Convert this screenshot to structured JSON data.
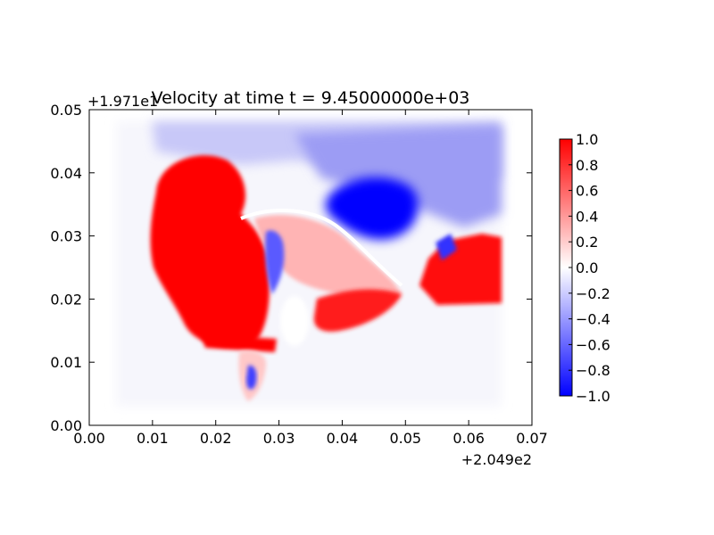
{
  "chart_data": {
    "type": "heatmap",
    "title": "Velocity at time t = 9.45000000e+03",
    "xlabel": "",
    "ylabel": "",
    "x_offset_label": "+2.049e2",
    "y_offset_label": "+1.971e1",
    "xlim": [
      0.0,
      0.07
    ],
    "ylim": [
      0.0,
      0.05
    ],
    "x_ticks": [
      "0.00",
      "0.01",
      "0.02",
      "0.03",
      "0.04",
      "0.05",
      "0.06",
      "0.07"
    ],
    "y_ticks": [
      "0.00",
      "0.01",
      "0.02",
      "0.03",
      "0.04",
      "0.05"
    ],
    "colorbar": {
      "min": -1.0,
      "max": 1.0,
      "colormap": "bwr",
      "ticks": [
        "1.0",
        "0.8",
        "0.6",
        "0.4",
        "0.2",
        "0.0",
        "−0.2",
        "−0.4",
        "−0.6",
        "−0.8",
        "−1.0"
      ]
    },
    "grid": false,
    "regions": [
      {
        "x": [
          0.009,
          0.065
        ],
        "y": [
          0.043,
          0.048
        ],
        "value": -0.3
      },
      {
        "x": [
          0.035,
          0.048
        ],
        "y": [
          0.03,
          0.038
        ],
        "value": -1.0
      },
      {
        "x": [
          0.012,
          0.027
        ],
        "y": [
          0.018,
          0.04
        ],
        "value": 1.0
      },
      {
        "x": [
          0.055,
          0.065
        ],
        "y": [
          0.02,
          0.029
        ],
        "value": 1.0
      },
      {
        "x": [
          0.029,
          0.04
        ],
        "y": [
          0.019,
          0.03
        ],
        "value": 0.3
      },
      {
        "x": [
          0.037,
          0.046
        ],
        "y": [
          0.016,
          0.022
        ],
        "value": 1.0
      },
      {
        "x": [
          0.024,
          0.027
        ],
        "y": [
          0.004,
          0.012
        ],
        "value": -0.5
      }
    ],
    "colors": {
      "negative": "#0000ff",
      "zero": "#ffffff",
      "positive": "#ff0000"
    }
  }
}
